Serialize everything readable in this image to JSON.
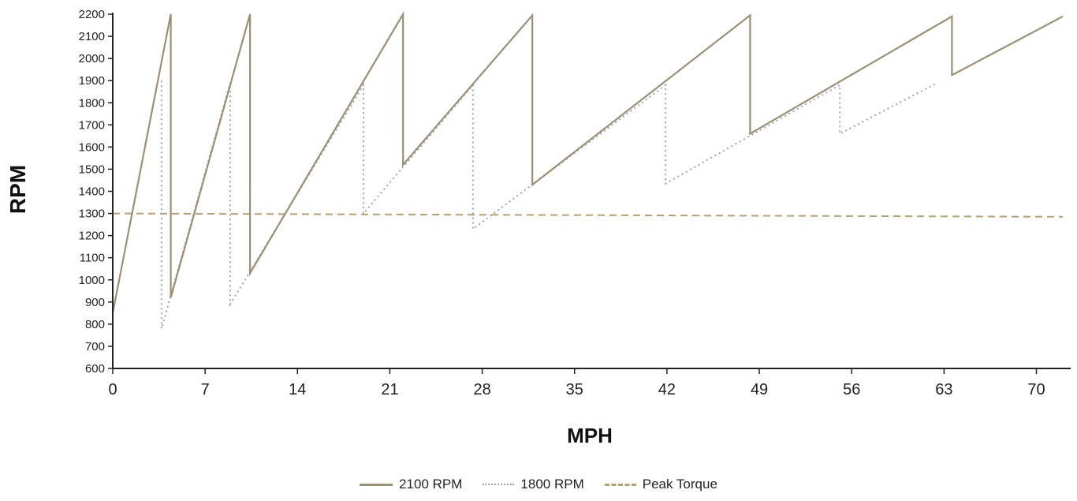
{
  "chart_data": {
    "type": "line",
    "xlabel": "MPH",
    "ylabel": "RPM",
    "xlim": [
      0,
      72
    ],
    "ylim": [
      600,
      2200
    ],
    "x_ticks": [
      "0",
      "7",
      "14",
      "21",
      "28",
      "35",
      "42",
      "49",
      "56",
      "63",
      "70"
    ],
    "y_ticks": [
      "600",
      "700",
      "800",
      "900",
      "1000",
      "1100",
      "1200",
      "1300",
      "1400",
      "1500",
      "1600",
      "1700",
      "1800",
      "1900",
      "2000",
      "2100",
      "2200"
    ],
    "series": [
      {
        "name": "2100 RPM",
        "color": "#9a9072",
        "style": "solid",
        "points": [
          [
            0,
            850
          ],
          [
            4.4,
            2200
          ],
          [
            4.4,
            920
          ],
          [
            10.4,
            2200
          ],
          [
            10.4,
            1030
          ],
          [
            22.0,
            2200
          ],
          [
            22.0,
            1520
          ],
          [
            31.8,
            2195
          ],
          [
            31.8,
            1430
          ],
          [
            48.3,
            2195
          ],
          [
            48.3,
            1660
          ],
          [
            63.6,
            2190
          ],
          [
            63.6,
            1925
          ],
          [
            72,
            2190
          ]
        ]
      },
      {
        "name": "1800 RPM",
        "color": "#9aa3b8",
        "style": "dotted",
        "points": [
          [
            3.7,
            1900
          ],
          [
            3.7,
            780
          ],
          [
            8.9,
            1890
          ],
          [
            8.9,
            890
          ],
          [
            19.0,
            1880
          ],
          [
            19.0,
            1300
          ],
          [
            27.3,
            1880
          ],
          [
            27.3,
            1230
          ],
          [
            41.9,
            1880
          ],
          [
            41.9,
            1435
          ],
          [
            55.1,
            1880
          ],
          [
            55.1,
            1660
          ],
          [
            62.5,
            1890
          ]
        ]
      },
      {
        "name": "Peak Torque",
        "color": "#b8a06a",
        "style": "dashed",
        "points": [
          [
            0,
            1300
          ],
          [
            72,
            1285
          ]
        ]
      }
    ],
    "legend_position": "bottom-center",
    "grid": false
  }
}
